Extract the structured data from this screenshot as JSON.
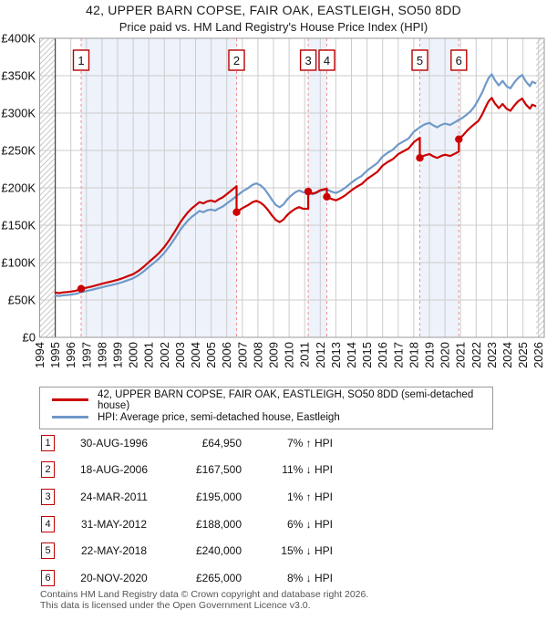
{
  "title": "42, UPPER BARN COPSE, FAIR OAK, EASTLEIGH, SO50 8DD",
  "subtitle": "Price paid vs. HM Land Registry's House Price Index (HPI)",
  "legend": [
    {
      "label": "42, UPPER BARN COPSE, FAIR OAK, EASTLEIGH, SO50 8DD (semi-detached house)",
      "color": "#cc0000"
    },
    {
      "label": "HPI: Average price, semi-detached house, Eastleigh",
      "color": "#6f99c8"
    }
  ],
  "sales": [
    {
      "num": "1",
      "date": "30-AUG-1996",
      "price": "£64,950",
      "pct": "7% ↑ HPI",
      "x_year": 1996.66,
      "price_k": 64.95
    },
    {
      "num": "2",
      "date": "18-AUG-2006",
      "price": "£167,500",
      "pct": "11% ↓ HPI",
      "x_year": 2006.63,
      "price_k": 167.5
    },
    {
      "num": "3",
      "date": "24-MAR-2011",
      "price": "£195,000",
      "pct": "1% ↑ HPI",
      "x_year": 2011.23,
      "price_k": 195
    },
    {
      "num": "4",
      "date": "31-MAY-2012",
      "price": "£188,000",
      "pct": "6% ↓ HPI",
      "x_year": 2012.42,
      "price_k": 188
    },
    {
      "num": "5",
      "date": "22-MAY-2018",
      "price": "£240,000",
      "pct": "15% ↓ HPI",
      "x_year": 2018.39,
      "price_k": 240
    },
    {
      "num": "6",
      "date": "20-NOV-2020",
      "price": "£265,000",
      "pct": "8% ↓ HPI",
      "x_year": 2020.89,
      "price_k": 265
    }
  ],
  "footer": [
    "Contains HM Land Registry data © Crown copyright and database right 2026.",
    "This data is licensed under the Open Government Licence v3.0."
  ],
  "chart_data": {
    "type": "line",
    "title": "42, UPPER BARN COPSE, FAIR OAK, EASTLEIGH, SO50 8DD",
    "subtitle": "Price paid vs. HM Land Registry's House Price Index (HPI)",
    "xlabel": "",
    "ylabel": "",
    "xlim": [
      1994,
      2026.37
    ],
    "ylim": [
      0,
      400
    ],
    "grid": true,
    "legend_position": "below",
    "x_axis": {
      "years": [
        1994,
        1995,
        1996,
        1997,
        1998,
        1999,
        2000,
        2001,
        2002,
        2003,
        2004,
        2005,
        2006,
        2007,
        2008,
        2009,
        2010,
        2011,
        2012,
        2013,
        2014,
        2015,
        2016,
        2017,
        2018,
        2019,
        2020,
        2021,
        2022,
        2023,
        2024,
        2025,
        2026
      ]
    },
    "y_axis": {
      "ticks": [
        {
          "v": 0,
          "label": "£0"
        },
        {
          "v": 50,
          "label": "£50K"
        },
        {
          "v": 100,
          "label": "£100K"
        },
        {
          "v": 150,
          "label": "£150K"
        },
        {
          "v": 200,
          "label": "£200K"
        },
        {
          "v": 250,
          "label": "£250K"
        },
        {
          "v": 300,
          "label": "£300K"
        },
        {
          "v": 350,
          "label": "£350K"
        },
        {
          "v": 400,
          "label": "£400K"
        }
      ]
    },
    "data_start_year": 1995,
    "hatch_regions": [
      [
        1994,
        1995
      ],
      [
        2025.85,
        2026.37
      ]
    ],
    "ownership_bands": [
      [
        1996.66,
        2006.63
      ],
      [
        2011.23,
        2012.42
      ],
      [
        2018.39,
        2020.89
      ]
    ],
    "colors": {
      "property": "#cc0000",
      "hpi": "#6f99c8",
      "band": "#eef2fa",
      "grid": "#cccccc",
      "frame": "#999999",
      "hatch": "#c8c8c8",
      "dash": "#ef8f8f",
      "data_start": "#444444",
      "marker": "#cc0000",
      "box_border": "#bb0000"
    },
    "series": [
      {
        "name": "42, UPPER BARN COPSE, FAIR OAK, EASTLEIGH, SO50 8DD (semi-detached house)",
        "unit": "GBP_thousands",
        "color": "#cc0000",
        "points": [
          [
            1995,
            60
          ],
          [
            1995.25,
            59.1
          ],
          [
            1995.5,
            60.1
          ],
          [
            1995.75,
            60.6
          ],
          [
            1996,
            61.2
          ],
          [
            1996.33,
            62.3
          ],
          [
            1996.66,
            64.95
          ],
          [
            1997,
            66.3
          ],
          [
            1997.33,
            67.9
          ],
          [
            1997.66,
            69.8
          ],
          [
            1998,
            71.7
          ],
          [
            1998.33,
            73.4
          ],
          [
            1998.66,
            75.1
          ],
          [
            1999,
            77
          ],
          [
            1999.33,
            79.2
          ],
          [
            1999.66,
            81.9
          ],
          [
            2000,
            84.5
          ],
          [
            2000.33,
            88.8
          ],
          [
            2000.66,
            94.2
          ],
          [
            2001,
            100.6
          ],
          [
            2001.33,
            106.5
          ],
          [
            2001.66,
            112.9
          ],
          [
            2002,
            120.9
          ],
          [
            2002.33,
            130.5
          ],
          [
            2002.66,
            141.2
          ],
          [
            2003,
            153
          ],
          [
            2003.25,
            160.5
          ],
          [
            2003.5,
            166.9
          ],
          [
            2003.75,
            172.3
          ],
          [
            2004,
            176.6
          ],
          [
            2004.25,
            180.8
          ],
          [
            2004.5,
            179.2
          ],
          [
            2004.75,
            181.9
          ],
          [
            2005,
            183
          ],
          [
            2005.25,
            181.4
          ],
          [
            2005.5,
            184.6
          ],
          [
            2005.75,
            187.3
          ],
          [
            2006,
            191.5
          ],
          [
            2006.33,
            196.9
          ],
          [
            2006.63,
            202.2
          ],
          [
            2006.63,
            167.5
          ],
          [
            2007,
            172.8
          ],
          [
            2007.33,
            176.4
          ],
          [
            2007.66,
            180.8
          ],
          [
            2007.9,
            182.6
          ],
          [
            2008.15,
            180.4
          ],
          [
            2008.4,
            176.4
          ],
          [
            2008.65,
            170.2
          ],
          [
            2008.9,
            163.1
          ],
          [
            2009.15,
            156.9
          ],
          [
            2009.4,
            154.2
          ],
          [
            2009.65,
            157.8
          ],
          [
            2009.9,
            164
          ],
          [
            2010.15,
            168.4
          ],
          [
            2010.4,
            171.9
          ],
          [
            2010.65,
            174.2
          ],
          [
            2010.9,
            171.9
          ],
          [
            2011.23,
            172.1
          ],
          [
            2011.23,
            195
          ],
          [
            2011.5,
            192.3
          ],
          [
            2011.75,
            193.8
          ],
          [
            2012,
            196.8
          ],
          [
            2012.42,
            198.8
          ],
          [
            2012.42,
            188
          ],
          [
            2012.7,
            185.2
          ],
          [
            2013,
            183.3
          ],
          [
            2013.3,
            186.1
          ],
          [
            2013.6,
            189.9
          ],
          [
            2014,
            196.6
          ],
          [
            2014.33,
            201.3
          ],
          [
            2014.66,
            205.1
          ],
          [
            2015,
            211.8
          ],
          [
            2015.33,
            216.5
          ],
          [
            2015.66,
            221.3
          ],
          [
            2016,
            229.8
          ],
          [
            2016.33,
            234.6
          ],
          [
            2016.66,
            238.4
          ],
          [
            2017,
            245
          ],
          [
            2017.33,
            248.8
          ],
          [
            2017.66,
            252.6
          ],
          [
            2018,
            261.1
          ],
          [
            2018.39,
            266.8
          ],
          [
            2018.39,
            240
          ],
          [
            2018.66,
            243
          ],
          [
            2019,
            245.1
          ],
          [
            2019.25,
            242.1
          ],
          [
            2019.5,
            240
          ],
          [
            2019.75,
            242.6
          ],
          [
            2020,
            244.3
          ],
          [
            2020.33,
            242.6
          ],
          [
            2020.66,
            246
          ],
          [
            2020.89,
            248.5
          ],
          [
            2020.89,
            265
          ],
          [
            2021.15,
            270
          ],
          [
            2021.4,
            276
          ],
          [
            2021.65,
            281
          ],
          [
            2021.9,
            285.5
          ],
          [
            2022.15,
            289.5
          ],
          [
            2022.4,
            298.5
          ],
          [
            2022.6,
            307.6
          ],
          [
            2022.8,
            315.8
          ],
          [
            2023,
            320.3
          ],
          [
            2023.2,
            313
          ],
          [
            2023.45,
            306.6
          ],
          [
            2023.7,
            312.1
          ],
          [
            2023.95,
            305.8
          ],
          [
            2024.2,
            303.1
          ],
          [
            2024.45,
            310.3
          ],
          [
            2024.7,
            315.8
          ],
          [
            2024.95,
            319.4
          ],
          [
            2025.2,
            311.2
          ],
          [
            2025.45,
            305.8
          ],
          [
            2025.6,
            311.2
          ],
          [
            2025.8,
            309.4
          ]
        ]
      },
      {
        "name": "HPI: Average price, semi-detached house, Eastleigh",
        "unit": "GBP_thousands",
        "color": "#6f99c8",
        "points": [
          [
            1995,
            56
          ],
          [
            1995.25,
            55.2
          ],
          [
            1995.5,
            56.2
          ],
          [
            1995.75,
            56.6
          ],
          [
            1996,
            57.2
          ],
          [
            1996.33,
            58.2
          ],
          [
            1996.66,
            60.5
          ],
          [
            1997,
            62
          ],
          [
            1997.33,
            63.5
          ],
          [
            1997.66,
            65.2
          ],
          [
            1998,
            67
          ],
          [
            1998.33,
            68.6
          ],
          [
            1998.66,
            70.2
          ],
          [
            1999,
            72
          ],
          [
            1999.33,
            74
          ],
          [
            1999.66,
            76.5
          ],
          [
            2000,
            79
          ],
          [
            2000.33,
            83
          ],
          [
            2000.66,
            88
          ],
          [
            2001,
            94
          ],
          [
            2001.33,
            99.5
          ],
          [
            2001.66,
            105.5
          ],
          [
            2002,
            113
          ],
          [
            2002.33,
            122
          ],
          [
            2002.66,
            132
          ],
          [
            2003,
            143
          ],
          [
            2003.25,
            150
          ],
          [
            2003.5,
            156
          ],
          [
            2003.75,
            161
          ],
          [
            2004,
            165
          ],
          [
            2004.25,
            169
          ],
          [
            2004.5,
            167.5
          ],
          [
            2004.75,
            170
          ],
          [
            2005,
            171
          ],
          [
            2005.25,
            169.5
          ],
          [
            2005.5,
            172.5
          ],
          [
            2005.75,
            175
          ],
          [
            2006,
            179
          ],
          [
            2006.33,
            184
          ],
          [
            2006.63,
            189
          ],
          [
            2007,
            195
          ],
          [
            2007.33,
            199
          ],
          [
            2007.66,
            204
          ],
          [
            2007.9,
            206
          ],
          [
            2008.15,
            203.5
          ],
          [
            2008.4,
            199
          ],
          [
            2008.65,
            192
          ],
          [
            2008.9,
            184
          ],
          [
            2009.15,
            177
          ],
          [
            2009.4,
            174
          ],
          [
            2009.65,
            178
          ],
          [
            2009.9,
            185
          ],
          [
            2010.15,
            190
          ],
          [
            2010.4,
            194
          ],
          [
            2010.65,
            196.5
          ],
          [
            2010.9,
            194
          ],
          [
            2011.23,
            194.2
          ],
          [
            2011.5,
            191.5
          ],
          [
            2011.75,
            193
          ],
          [
            2012,
            196
          ],
          [
            2012.42,
            198
          ],
          [
            2012.7,
            195
          ],
          [
            2013,
            193
          ],
          [
            2013.3,
            196
          ],
          [
            2013.6,
            200
          ],
          [
            2014,
            207
          ],
          [
            2014.33,
            212
          ],
          [
            2014.66,
            216
          ],
          [
            2015,
            223
          ],
          [
            2015.33,
            228
          ],
          [
            2015.66,
            233
          ],
          [
            2016,
            242
          ],
          [
            2016.33,
            247
          ],
          [
            2016.66,
            251
          ],
          [
            2017,
            258
          ],
          [
            2017.33,
            262
          ],
          [
            2017.66,
            266
          ],
          [
            2018,
            275
          ],
          [
            2018.39,
            281
          ],
          [
            2018.66,
            284.5
          ],
          [
            2019,
            287
          ],
          [
            2019.25,
            283.5
          ],
          [
            2019.5,
            281
          ],
          [
            2019.75,
            284
          ],
          [
            2020,
            286
          ],
          [
            2020.33,
            284
          ],
          [
            2020.66,
            288
          ],
          [
            2020.89,
            291
          ],
          [
            2021.15,
            294
          ],
          [
            2021.4,
            298
          ],
          [
            2021.65,
            302.5
          ],
          [
            2021.9,
            309
          ],
          [
            2022.15,
            318
          ],
          [
            2022.4,
            328
          ],
          [
            2022.6,
            338
          ],
          [
            2022.8,
            347
          ],
          [
            2023,
            352
          ],
          [
            2023.2,
            344
          ],
          [
            2023.45,
            337
          ],
          [
            2023.7,
            343
          ],
          [
            2023.95,
            336
          ],
          [
            2024.2,
            333
          ],
          [
            2024.45,
            341
          ],
          [
            2024.7,
            347
          ],
          [
            2024.95,
            351
          ],
          [
            2025.2,
            342
          ],
          [
            2025.45,
            336
          ],
          [
            2025.6,
            342
          ],
          [
            2025.8,
            340
          ]
        ]
      }
    ]
  }
}
